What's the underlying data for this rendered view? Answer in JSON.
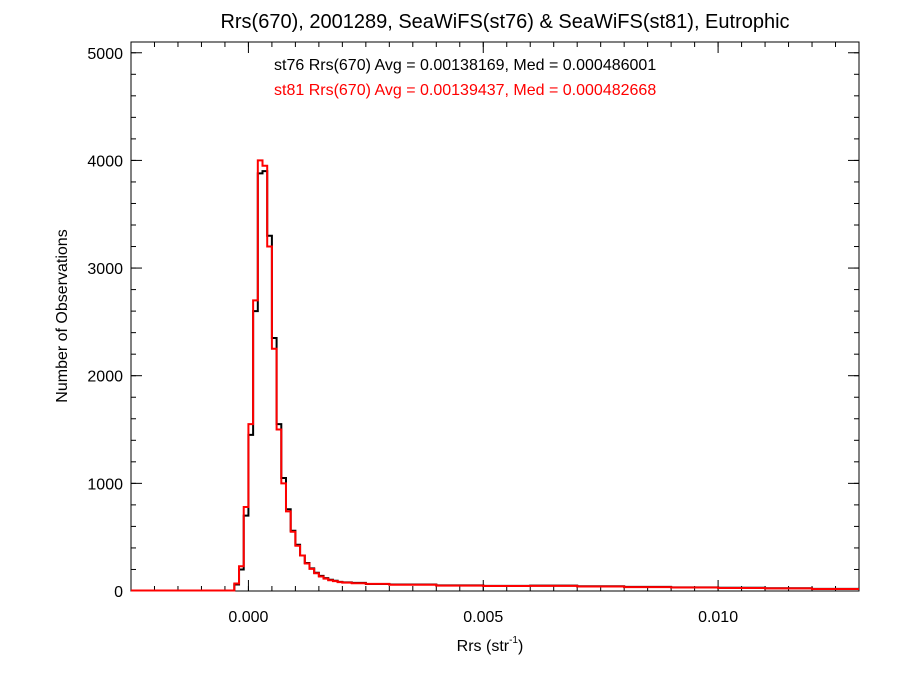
{
  "chart_data": {
    "type": "histogram",
    "title": "Rrs(670), 2001289, SeaWiFS(st76) & SeaWiFS(st81), Eutrophic",
    "xlabel": {
      "base": "Rrs (str",
      "sup": "-1",
      "close": ")"
    },
    "ylabel": "Number of Observations",
    "xlim": [
      -0.0025,
      0.013
    ],
    "ylim": [
      0,
      5100
    ],
    "x_ticks": [
      {
        "value": 0.0,
        "label": "0.000"
      },
      {
        "value": 0.005,
        "label": "0.005"
      },
      {
        "value": 0.01,
        "label": "0.010"
      }
    ],
    "x_minor_step": 0.0005,
    "y_ticks": [
      {
        "value": 0,
        "label": "0"
      },
      {
        "value": 1000,
        "label": "1000"
      },
      {
        "value": 2000,
        "label": "2000"
      },
      {
        "value": 3000,
        "label": "3000"
      },
      {
        "value": 4000,
        "label": "4000"
      },
      {
        "value": 5000,
        "label": "5000"
      }
    ],
    "y_minor_step": 200,
    "bin_width": 0.0001,
    "series": [
      {
        "name": "st76",
        "color": "#000000",
        "stats_text": "st76 Rrs(670) Avg = 0.00138169, Med = 0.000486001",
        "edges": [
          -0.0025,
          -0.0003,
          -0.0002,
          -0.0001,
          0.0,
          0.0001,
          0.0002,
          0.0003,
          0.0004,
          0.0005,
          0.0006,
          0.0007,
          0.0008,
          0.0009,
          0.001,
          0.0011,
          0.0012,
          0.0013,
          0.0014,
          0.0015,
          0.0016,
          0.0017,
          0.0018,
          0.0019,
          0.002,
          0.0022,
          0.0025,
          0.003,
          0.004,
          0.005,
          0.006,
          0.007,
          0.008,
          0.009,
          0.01,
          0.011,
          0.012,
          0.013
        ],
        "counts": [
          5,
          60,
          200,
          700,
          1450,
          2600,
          3880,
          3900,
          3300,
          2350,
          1550,
          1050,
          760,
          560,
          430,
          330,
          260,
          210,
          170,
          140,
          120,
          105,
          95,
          85,
          80,
          75,
          65,
          60,
          52,
          48,
          50,
          44,
          38,
          34,
          30,
          25,
          20
        ]
      },
      {
        "name": "st81",
        "color": "#ff0000",
        "stats_text": "st81 Rrs(670) Avg = 0.00139437, Med = 0.000482668",
        "edges": [
          -0.0025,
          -0.0003,
          -0.0002,
          -0.0001,
          0.0,
          0.0001,
          0.0002,
          0.0003,
          0.0004,
          0.0005,
          0.0006,
          0.0007,
          0.0008,
          0.0009,
          0.001,
          0.0011,
          0.0012,
          0.0013,
          0.0014,
          0.0015,
          0.0016,
          0.0017,
          0.0018,
          0.0019,
          0.002,
          0.0022,
          0.0025,
          0.003,
          0.004,
          0.005,
          0.006,
          0.007,
          0.008,
          0.009,
          0.01,
          0.011,
          0.012,
          0.013
        ],
        "counts": [
          5,
          70,
          230,
          780,
          1550,
          2700,
          4000,
          3950,
          3200,
          2250,
          1500,
          1000,
          740,
          550,
          420,
          330,
          255,
          205,
          165,
          135,
          115,
          100,
          92,
          82,
          78,
          72,
          66,
          58,
          50,
          46,
          48,
          42,
          36,
          32,
          28,
          24,
          19
        ]
      }
    ]
  }
}
